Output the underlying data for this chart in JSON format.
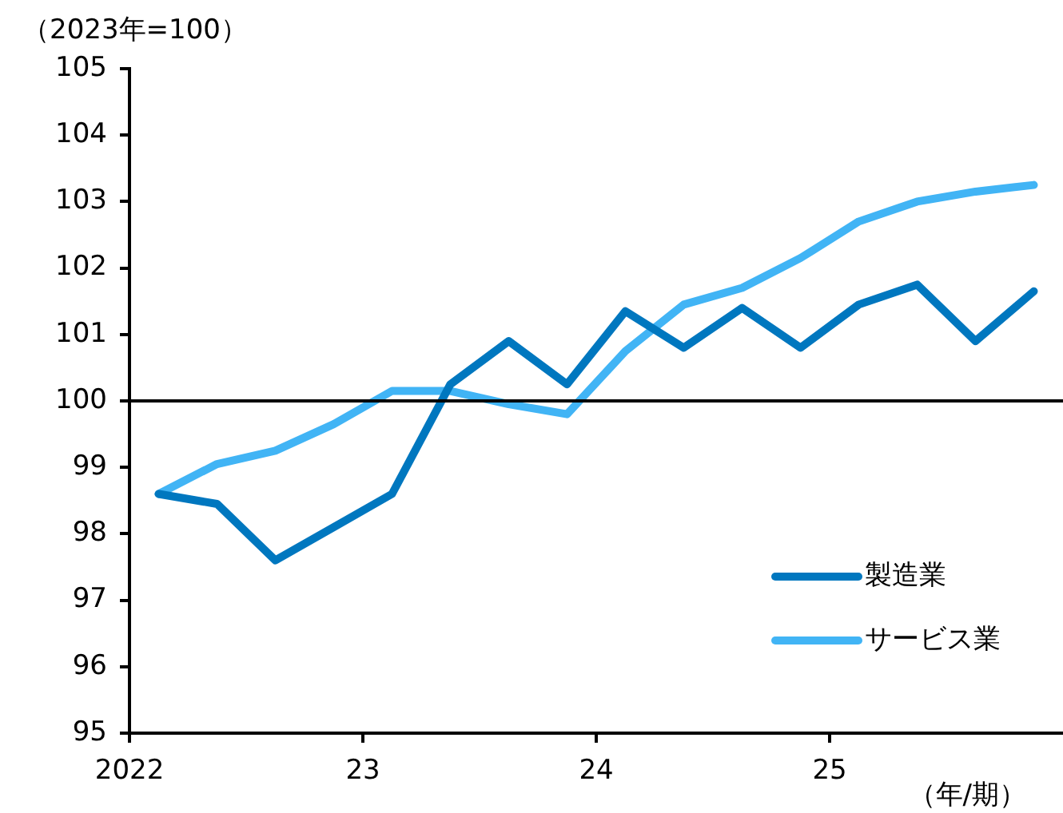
{
  "chart_data": {
    "type": "line",
    "ylabel": "（2023年=100）",
    "xlabel": "（年/期）",
    "x": [
      2022.125,
      2022.375,
      2022.625,
      2022.875,
      2023.125,
      2023.375,
      2023.625,
      2023.875,
      2024.125,
      2024.375,
      2024.625,
      2024.875,
      2025.125,
      2025.375,
      2025.625,
      2025.875
    ],
    "series": [
      {
        "name": "製造業",
        "color": "#0077bf",
        "values": [
          98.6,
          98.45,
          97.6,
          98.1,
          98.6,
          100.25,
          100.9,
          100.25,
          101.35,
          100.8,
          101.4,
          100.8,
          101.45,
          101.75,
          100.9,
          101.65
        ]
      },
      {
        "name": "サービス業",
        "color": "#41b4f5",
        "values": [
          98.6,
          99.05,
          99.25,
          99.65,
          100.15,
          100.15,
          99.95,
          99.8,
          100.75,
          101.45,
          101.7,
          102.15,
          102.7,
          103.0,
          103.15,
          103.25
        ]
      }
    ],
    "xlim": [
      2022,
      2026
    ],
    "xticks": [
      {
        "value": 2022,
        "label": "2022"
      },
      {
        "value": 2023,
        "label": "23"
      },
      {
        "value": 2024,
        "label": "24"
      },
      {
        "value": 2025,
        "label": "25"
      }
    ],
    "ylim": [
      95,
      105
    ],
    "yticks": [
      95,
      96,
      97,
      98,
      99,
      100,
      101,
      102,
      103,
      104,
      105
    ],
    "ref_lines": [
      {
        "axis": "y",
        "value": 100,
        "color": "#000000"
      }
    ],
    "grid": false,
    "legend": "bottom right",
    "marker": "none",
    "line_style": "solid"
  }
}
